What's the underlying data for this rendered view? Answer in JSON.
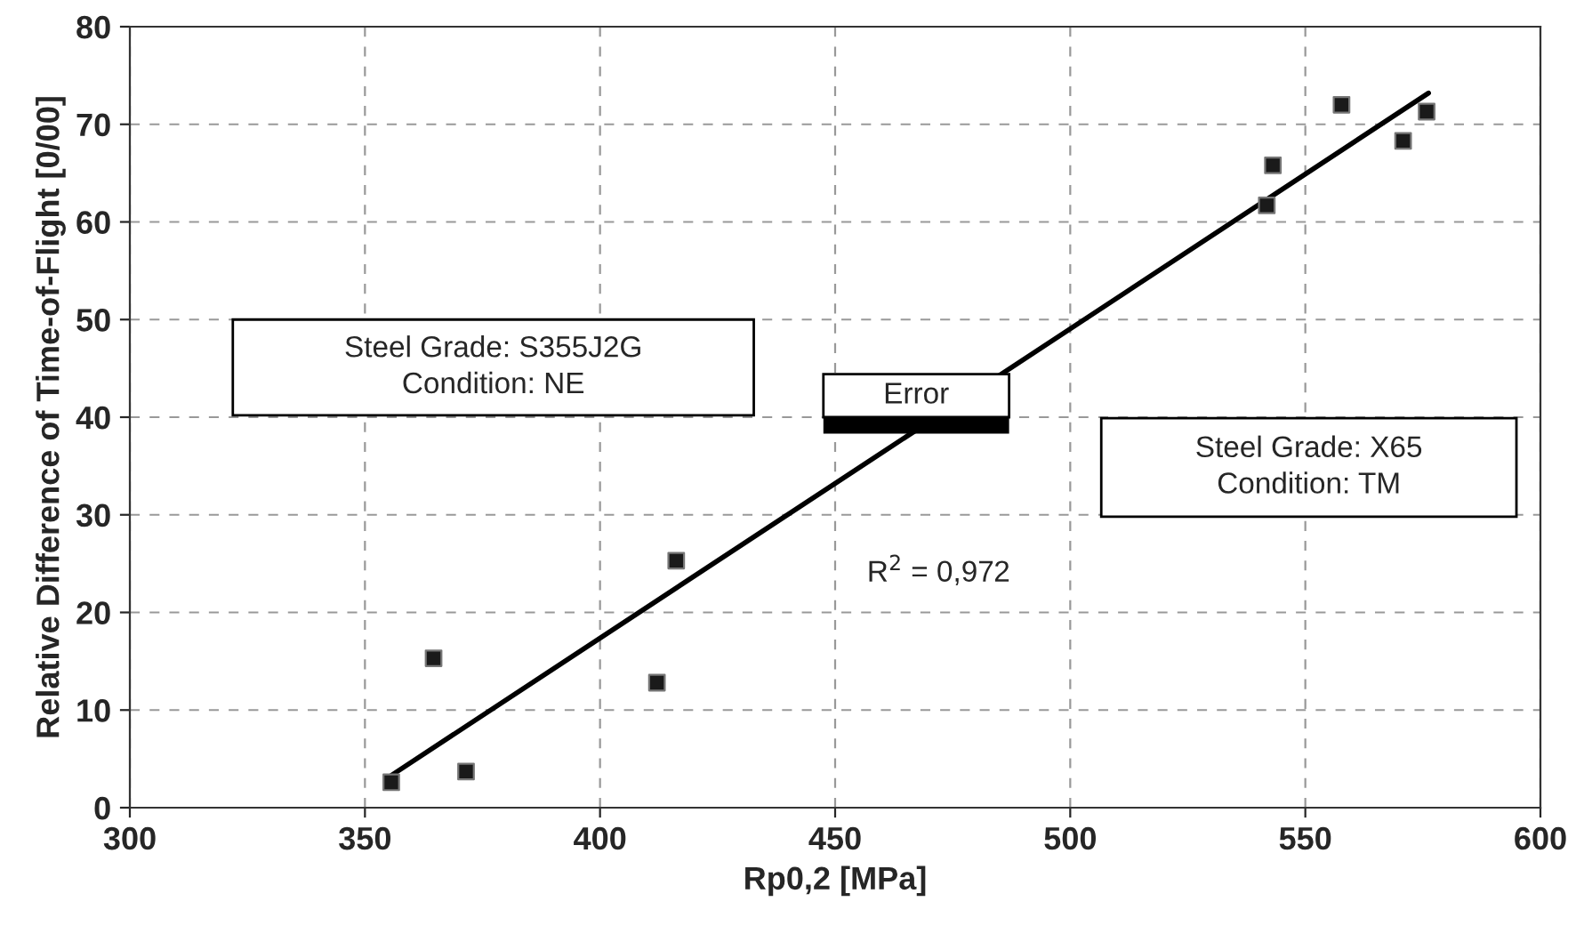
{
  "chart_data": {
    "type": "scatter",
    "xlabel": "Rp0,2 [MPa]",
    "ylabel": "Relative Difference of Time-of-Flight [0/00]",
    "series": [
      {
        "color": "#1a1a1a",
        "marker": "square",
        "x": [
          355.6,
          364.6,
          371.5,
          412.1,
          416.2,
          541.8,
          543.1,
          557.7,
          570.8,
          575.8
        ],
        "values": [
          2.6,
          15.3,
          3.7,
          12.8,
          25.3,
          61.7,
          65.8,
          72.0,
          68.3,
          71.3
        ]
      },
      {
        "type": "line",
        "color": "#000000",
        "line_style": "solid",
        "x": [
          355.6,
          576.2
        ],
        "values": [
          3.3,
          73.2
        ]
      }
    ],
    "annotations": [
      "Steel Grade: S355J2G\nCondition: NE",
      "Steel Grade: X65\nCondition: TM",
      "Error",
      "R$^{2}$ = 0,972"
    ],
    "xlim": [
      300,
      600
    ],
    "xticks": [
      300,
      350,
      400,
      450,
      500,
      550,
      600
    ],
    "ylim": [
      0,
      80
    ],
    "yticks": [
      0,
      10,
      20,
      30,
      40,
      50,
      60,
      70,
      80
    ],
    "grid": true
  }
}
